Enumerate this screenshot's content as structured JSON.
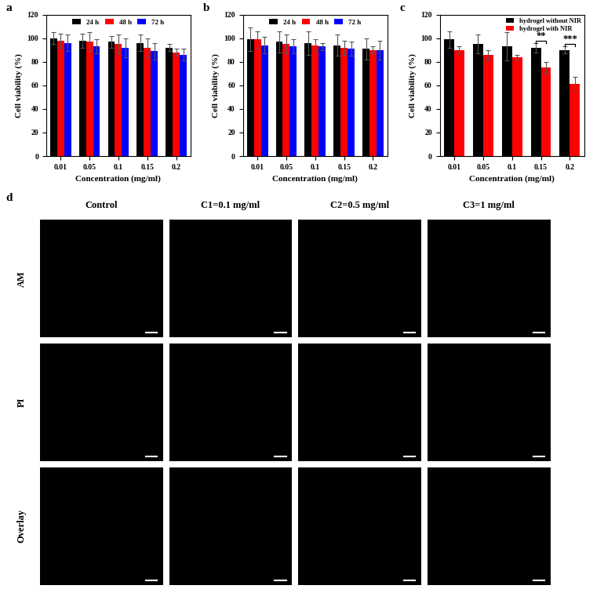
{
  "chart_data": [
    {
      "type": "bar",
      "panel_label": "a",
      "x_label": "Concentration (mg/ml)",
      "y_label": "Cell viability (%)",
      "categories": [
        "0.01",
        "0.05",
        "0.1",
        "0.15",
        "0.2"
      ],
      "series": [
        {
          "name": "24 h",
          "color": "#000000",
          "values": [
            100,
            98,
            97,
            96,
            92
          ],
          "errors": [
            5,
            6,
            5,
            7,
            3
          ]
        },
        {
          "name": "48 h",
          "color": "#ff0000",
          "values": [
            98,
            97,
            95,
            92,
            88
          ],
          "errors": [
            6,
            8,
            8,
            8,
            3
          ]
        },
        {
          "name": "72 h",
          "color": "#0000ff",
          "values": [
            96,
            93,
            92,
            89,
            86
          ],
          "errors": [
            7,
            6,
            8,
            7,
            5
          ]
        }
      ],
      "ylim": [
        0,
        120
      ],
      "yticks": [
        0,
        20,
        40,
        60,
        80,
        100,
        120
      ],
      "legend": "upper center"
    },
    {
      "type": "bar",
      "panel_label": "b",
      "x_label": "Concentration (mg/ml)",
      "y_label": "Cell viability (%)",
      "categories": [
        "0.01",
        "0.05",
        "0.1",
        "0.15",
        "0.2"
      ],
      "series": [
        {
          "name": "24 h",
          "color": "#000000",
          "values": [
            99,
            97,
            96,
            94,
            91
          ],
          "errors": [
            10,
            9,
            10,
            9,
            9
          ]
        },
        {
          "name": "48 h",
          "color": "#ff0000",
          "values": [
            99,
            95,
            94,
            92,
            90
          ],
          "errors": [
            7,
            8,
            5,
            6,
            3
          ]
        },
        {
          "name": "72 h",
          "color": "#0000ff",
          "values": [
            94,
            93,
            93,
            91,
            90
          ],
          "errors": [
            7,
            6,
            3,
            6,
            8
          ]
        }
      ],
      "ylim": [
        0,
        120
      ],
      "yticks": [
        0,
        20,
        40,
        60,
        80,
        100,
        120
      ],
      "legend": "upper center"
    },
    {
      "type": "bar",
      "panel_label": "c",
      "x_label": "Concentration (mg/ml)",
      "y_label": "Cell viability (%)",
      "categories": [
        "0.01",
        "0.05",
        "0.1",
        "0.15",
        "0.2"
      ],
      "series": [
        {
          "name": "hydrogel without NIR",
          "color": "#000000",
          "values": [
            99,
            95,
            93,
            92,
            90
          ],
          "errors": [
            7,
            8,
            12,
            4,
            3
          ]
        },
        {
          "name": "hydrogel with NIR",
          "color": "#ff0000",
          "values": [
            90,
            86,
            84,
            75,
            61
          ],
          "errors": [
            3,
            4,
            2,
            5,
            6
          ]
        }
      ],
      "annotations": [
        {
          "text": "**",
          "category": "0.15"
        },
        {
          "text": "***",
          "category": "0.2"
        }
      ],
      "ylim": [
        0,
        120
      ],
      "yticks": [
        0,
        20,
        40,
        60,
        80,
        100,
        120
      ],
      "legend": "upper right"
    }
  ],
  "image_grid": {
    "panel_label": "d",
    "columns": [
      "Control",
      "C1=0.1 mg/ml",
      "C2=0.5 mg/ml",
      "C3=1 mg/ml"
    ],
    "rows": [
      "AM",
      "PI",
      "Overlay"
    ]
  }
}
